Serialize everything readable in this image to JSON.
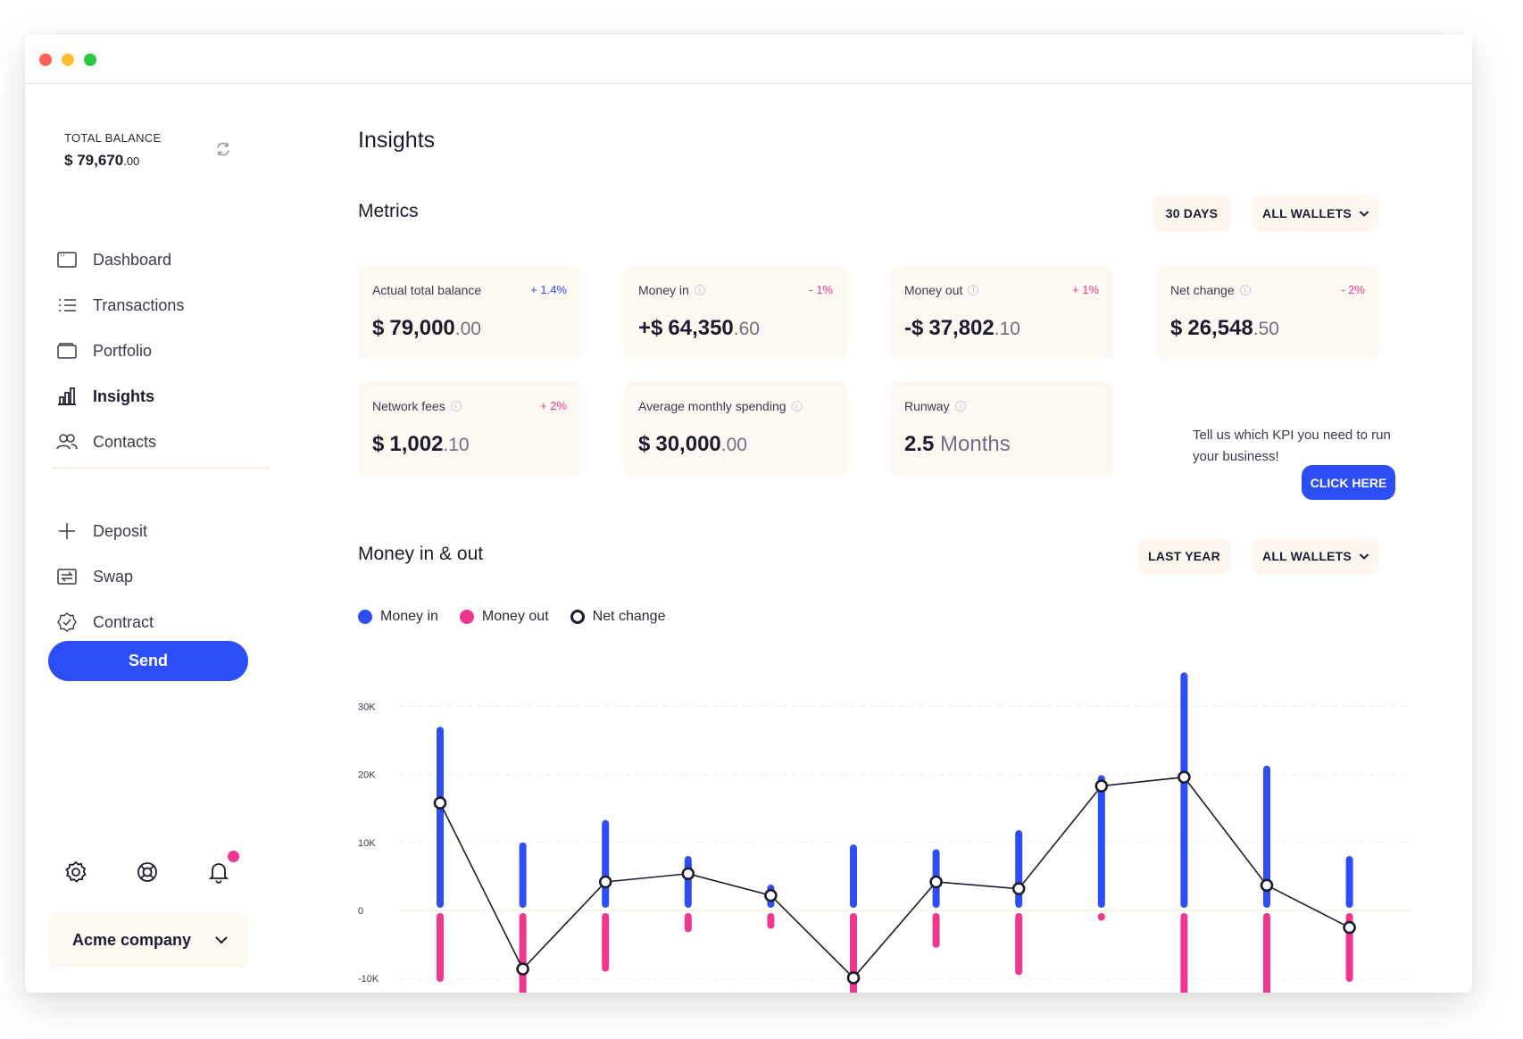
{
  "window": {
    "controls": [
      "close",
      "minimize",
      "maximize"
    ]
  },
  "sidebar": {
    "balance_label": "TOTAL BALANCE",
    "balance_currency": "$",
    "balance_main": "79,670",
    "balance_cents": ".00",
    "nav": [
      {
        "label": "Dashboard",
        "icon": "dashboard-icon",
        "active": false
      },
      {
        "label": "Transactions",
        "icon": "list-icon",
        "active": false
      },
      {
        "label": "Portfolio",
        "icon": "wallet-icon",
        "active": false
      },
      {
        "label": "Insights",
        "icon": "bar-chart-icon",
        "active": true
      },
      {
        "label": "Contacts",
        "icon": "contacts-icon",
        "active": false
      }
    ],
    "actions": [
      {
        "label": "Deposit",
        "icon": "plus-icon"
      },
      {
        "label": "Swap",
        "icon": "swap-icon"
      },
      {
        "label": "Contract",
        "icon": "badge-check-icon"
      }
    ],
    "send_label": "Send",
    "company_name": "Acme company"
  },
  "page": {
    "title": "Insights"
  },
  "metrics": {
    "title": "Metrics",
    "period_label": "30 DAYS",
    "wallets_label": "ALL WALLETS",
    "cards": [
      {
        "label": "Actual total balance",
        "change": "+ 1.4%",
        "trend": "up",
        "currency": "$",
        "value": "79,000",
        "decimals": ".00",
        "info": false
      },
      {
        "label": "Money in",
        "change": "- 1%",
        "trend": "down",
        "currency": "+$",
        "value": "64,350",
        "decimals": ".60",
        "info": true
      },
      {
        "label": "Money out",
        "change": "+ 1%",
        "trend": "down",
        "currency": "-$",
        "value": "37,802",
        "decimals": ".10",
        "info": true
      },
      {
        "label": "Net change",
        "change": "- 2%",
        "trend": "down",
        "currency": "$",
        "value": "26,548",
        "decimals": ".50",
        "info": true
      },
      {
        "label": "Network fees",
        "change": "+ 2%",
        "trend": "down",
        "currency": "$",
        "value": "1,002",
        "decimals": ".10",
        "info": true
      },
      {
        "label": "Average monthly spending",
        "change": "",
        "trend": "",
        "currency": "$",
        "value": "30,000",
        "decimals": ".00",
        "info": true
      },
      {
        "label": "Runway",
        "change": "",
        "trend": "",
        "currency": "",
        "value": "2.5",
        "decimals": "",
        "unit": "Months",
        "info": true
      }
    ],
    "kpi_prompt": "Tell us which KPI you need to run your business!",
    "kpi_button": "CLICK HERE"
  },
  "money_chart_header": {
    "title": "Money in & out",
    "period_label": "LAST YEAR",
    "wallets_label": "ALL WALLETS"
  },
  "colors": {
    "money_in": "#2d4ef5",
    "money_out": "#f0378e",
    "net_change": "#1c1c2e",
    "accent": "#2d4ef5"
  },
  "chart_data": {
    "type": "bar",
    "title": "Money in & out",
    "legend": [
      "Money in",
      "Money out",
      "Net change"
    ],
    "legend_position": "top-left",
    "y_ticks": [
      "30K",
      "20K",
      "10K",
      "0",
      "-10K"
    ],
    "ylim": [
      -13000,
      36000
    ],
    "grid": true,
    "series": [
      {
        "name": "Money in",
        "type": "bar",
        "values": [
          27000,
          10000,
          13300,
          8000,
          3800,
          9700,
          9000,
          11800,
          19900,
          35000,
          21300,
          8000
        ]
      },
      {
        "name": "Money out",
        "type": "bar",
        "values": [
          -10500,
          -14000,
          -9000,
          -3200,
          -2700,
          -14000,
          -5500,
          -9500,
          -1500,
          -14000,
          -14000,
          -10500
        ]
      },
      {
        "name": "Net change",
        "type": "line",
        "values": [
          15800,
          -8600,
          4200,
          5400,
          2200,
          -9900,
          4200,
          3200,
          18300,
          19600,
          3700,
          -2500
        ]
      }
    ]
  }
}
